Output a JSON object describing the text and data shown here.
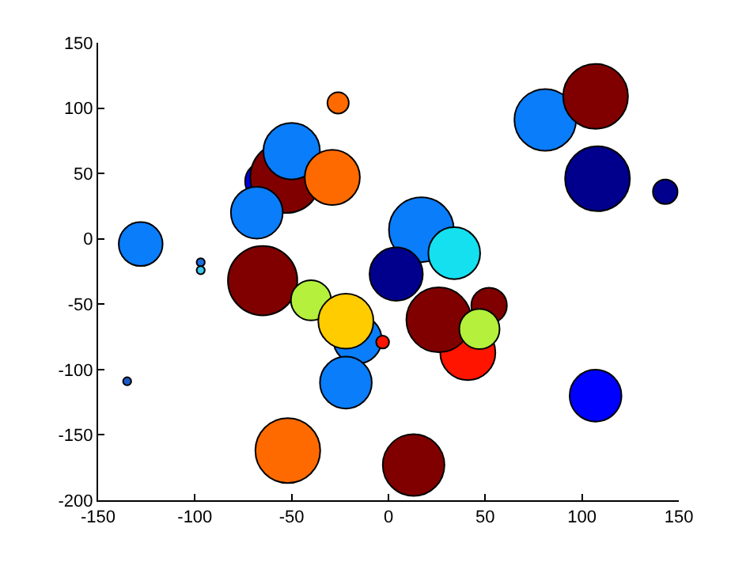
{
  "chart_data": {
    "type": "bubble",
    "x": [
      -128,
      -97,
      -97,
      -135,
      -26,
      -64,
      -53,
      -50,
      -29,
      -68,
      17,
      34,
      4,
      81,
      107,
      108,
      143,
      -65,
      -40,
      -16,
      -22,
      -3,
      -22,
      -52,
      13,
      41,
      26,
      52,
      47,
      107
    ],
    "values": [
      -4,
      -18,
      -24,
      -109,
      104,
      44,
      47,
      67,
      47,
      20,
      7,
      -11,
      -27,
      91,
      109,
      46,
      36,
      -32,
      -47,
      -77,
      -63,
      -79,
      -110,
      -162,
      -173,
      -87,
      -62,
      -51,
      -69,
      -120
    ],
    "sizes": [
      0.38,
      0.013,
      0.013,
      0.013,
      0.09,
      0.3,
      1,
      0.63,
      0.6,
      0.53,
      0.83,
      0.53,
      0.56,
      0.75,
      0.83,
      0.83,
      0.12,
      0.95,
      0.32,
      0.46,
      0.6,
      0.033,
      0.53,
      0.83,
      0.75,
      0.6,
      0.83,
      0.25,
      0.32,
      0.53
    ],
    "colors": [
      "#0a7dfa",
      "#1e6ee0",
      "#3cc8f0",
      "#1e5ac8",
      "#ff6a00",
      "#0000e0",
      "#800000",
      "#0a7dfa",
      "#ff6a00",
      "#0a7dfa",
      "#0a7dfa",
      "#14e0f0",
      "#00008c",
      "#0a7dfa",
      "#800000",
      "#00008c",
      "#00008c",
      "#800000",
      "#b4f03c",
      "#0a7dfa",
      "#ffcc00",
      "#ff1400",
      "#0a7dfa",
      "#ff6a00",
      "#800000",
      "#ff1400",
      "#800000",
      "#800000",
      "#b4f03c",
      "#0000ff"
    ],
    "xlim": [
      -150,
      150
    ],
    "xticks": [
      -150,
      -100,
      -50,
      0,
      50,
      100,
      150
    ],
    "ylim": [
      -200,
      150
    ],
    "yticks": [
      -200,
      -150,
      -100,
      -50,
      0,
      50,
      100,
      150
    ]
  }
}
